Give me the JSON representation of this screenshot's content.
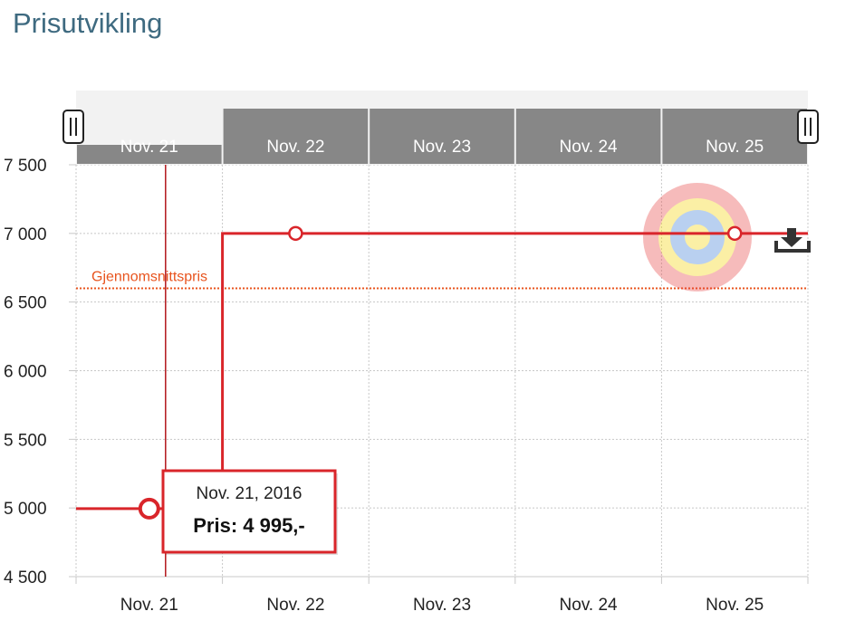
{
  "page": {
    "title": "Prisutvikling"
  },
  "chart_data": {
    "type": "line",
    "step": true,
    "categories": [
      "Nov. 21",
      "Nov. 22",
      "Nov. 23",
      "Nov. 24",
      "Nov. 25"
    ],
    "navigator_labels": [
      "Nov. 21",
      "Nov. 22",
      "Nov. 23",
      "Nov. 24",
      "Nov. 25"
    ],
    "series": [
      {
        "values": [
          4995,
          7000,
          7000,
          7000,
          7000
        ],
        "color": "#d9252a"
      }
    ],
    "y_ticks": [
      "7 500",
      "7 000",
      "6 500",
      "6 000",
      "5 500",
      "5 000",
      "4 500"
    ],
    "y_tick_values": [
      7500,
      7000,
      6500,
      6000,
      5500,
      5000,
      4500
    ],
    "ylim": [
      4500,
      7500
    ],
    "average": {
      "label": "Gjennomsnittspris",
      "value": 6600,
      "color": "#e8541e"
    },
    "tooltip": {
      "date": "Nov. 21, 2016",
      "text": "Pris: 4 995,-"
    },
    "grid": true,
    "colors": {
      "line": "#d9252a",
      "average": "#e8541e",
      "navigator": "#878787",
      "title": "#3e6a80"
    }
  },
  "toolbar": {
    "download_icon": "download-icon"
  }
}
